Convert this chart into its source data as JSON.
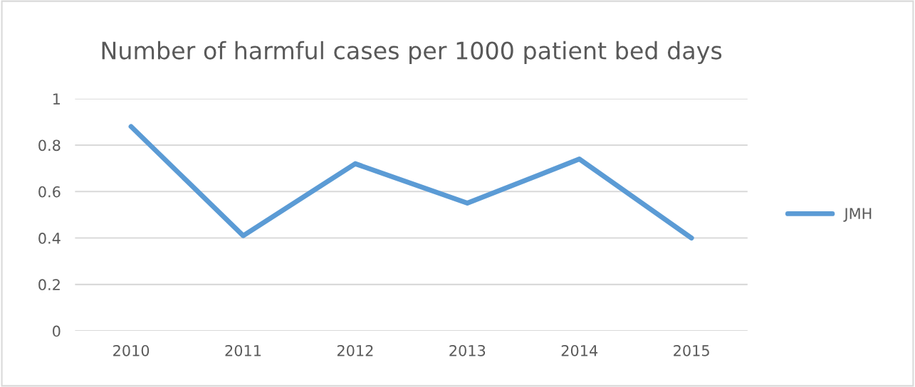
{
  "chart_data": {
    "type": "line",
    "title": "Number of harmful cases per 1000 patient bed days",
    "categories": [
      "2010",
      "2011",
      "2012",
      "2013",
      "2014",
      "2015"
    ],
    "series": [
      {
        "name": "JMH",
        "color": "#5b9bd5",
        "values": [
          0.88,
          0.41,
          0.72,
          0.55,
          0.74,
          0.4
        ]
      }
    ],
    "ylim": [
      0,
      1
    ],
    "yticks": [
      0,
      0.2,
      0.4,
      0.6,
      0.8,
      1
    ],
    "grid": "y",
    "legend": "right",
    "marker": "none"
  }
}
